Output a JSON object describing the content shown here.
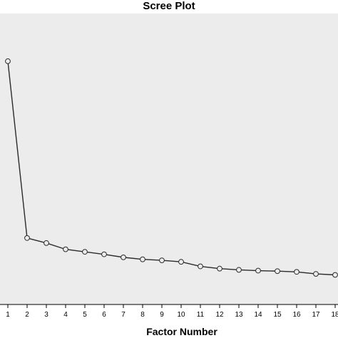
{
  "chart_data": {
    "type": "line",
    "title": "Scree Plot",
    "xlabel": "Factor Number",
    "ylabel": "",
    "x": [
      1,
      2,
      3,
      4,
      5,
      6,
      7,
      8,
      9,
      10,
      11,
      12,
      13,
      14,
      15,
      16,
      17,
      18
    ],
    "values": [
      8.6,
      1.55,
      1.35,
      1.1,
      1.0,
      0.9,
      0.78,
      0.7,
      0.66,
      0.6,
      0.42,
      0.33,
      0.28,
      0.25,
      0.23,
      0.2,
      0.12,
      0.08
    ],
    "ylim": [
      -1.1,
      10.5
    ],
    "grid": false,
    "plot_background": "#ececec",
    "line_color": "#2b2b2b",
    "marker": "open-circle"
  }
}
